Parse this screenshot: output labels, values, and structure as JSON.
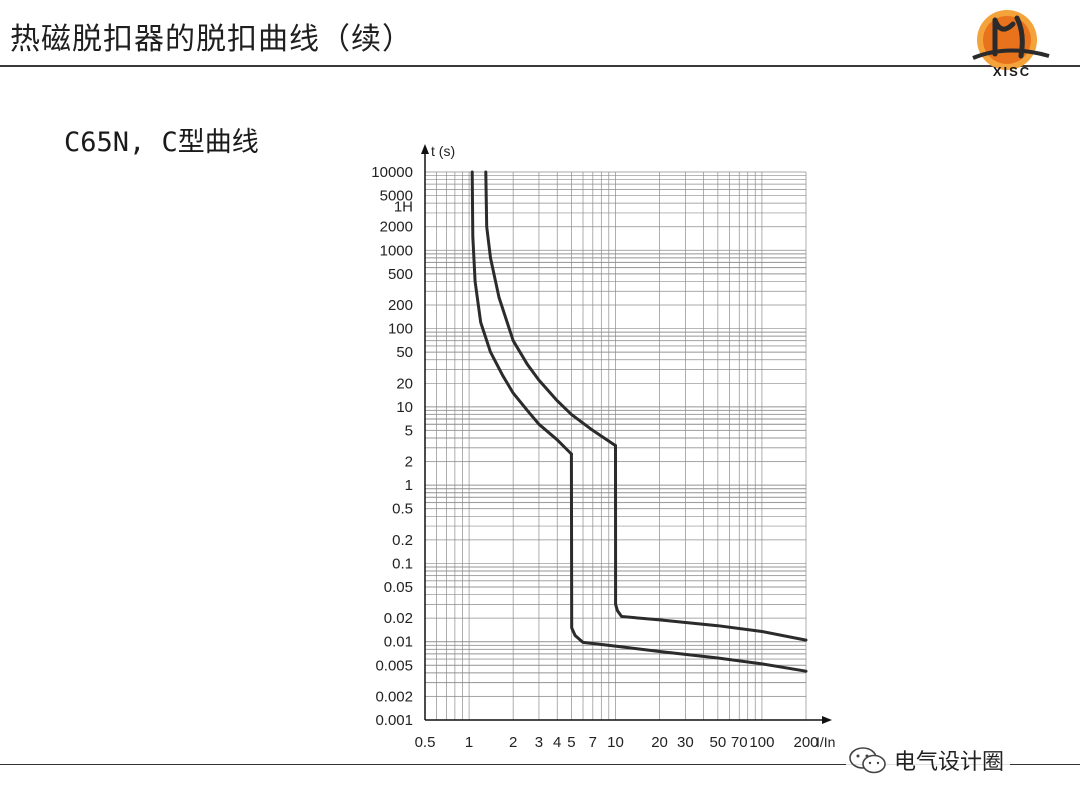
{
  "slide": {
    "title": "热磁脱扣器的脱扣曲线（续）",
    "subtitle": "C65N, C型曲线"
  },
  "logo": {
    "text": "XISC",
    "color_primary": "#e8731c",
    "color_dark": "#2b2b2b"
  },
  "watermark": {
    "text": "电气设计圈",
    "icon": "wechat-icon"
  },
  "colors": {
    "curve": "#2b2b2b",
    "grid": "#8c8c8c",
    "band": "#d6d6d6",
    "axis": "#111111"
  },
  "chart_data": {
    "type": "line",
    "xlabel": "I/In",
    "ylabel": "t (s)",
    "x_scale": "log",
    "y_scale": "log",
    "xlim": [
      0.5,
      200
    ],
    "ylim": [
      0.001,
      10000
    ],
    "grid": true,
    "x_ticks": [
      {
        "v": 0.5,
        "label": "0.5"
      },
      {
        "v": 1,
        "label": "1"
      },
      {
        "v": 2,
        "label": "2"
      },
      {
        "v": 3,
        "label": "3"
      },
      {
        "v": 4,
        "label": "4"
      },
      {
        "v": 5,
        "label": "5"
      },
      {
        "v": 7,
        "label": "7"
      },
      {
        "v": 10,
        "label": "10"
      },
      {
        "v": 20,
        "label": "20"
      },
      {
        "v": 30,
        "label": "30"
      },
      {
        "v": 50,
        "label": "50"
      },
      {
        "v": 70,
        "label": "70"
      },
      {
        "v": 100,
        "label": "100"
      },
      {
        "v": 200,
        "label": "200"
      }
    ],
    "y_ticks": [
      {
        "v": 10000,
        "label": "10000"
      },
      {
        "v": 5000,
        "label": "5000"
      },
      {
        "v": 3600,
        "label": "1H"
      },
      {
        "v": 2000,
        "label": "2000"
      },
      {
        "v": 1000,
        "label": "1000"
      },
      {
        "v": 500,
        "label": "500"
      },
      {
        "v": 200,
        "label": "200"
      },
      {
        "v": 100,
        "label": "100"
      },
      {
        "v": 50,
        "label": "50"
      },
      {
        "v": 20,
        "label": "20"
      },
      {
        "v": 10,
        "label": "10"
      },
      {
        "v": 5,
        "label": "5"
      },
      {
        "v": 2,
        "label": "2"
      },
      {
        "v": 1,
        "label": "1"
      },
      {
        "v": 0.5,
        "label": "0.5"
      },
      {
        "v": 0.2,
        "label": "0.2"
      },
      {
        "v": 0.1,
        "label": "0.1"
      },
      {
        "v": 0.05,
        "label": "0.05"
      },
      {
        "v": 0.02,
        "label": "0.02"
      },
      {
        "v": 0.01,
        "label": "0.01"
      },
      {
        "v": 0.005,
        "label": "0.005"
      },
      {
        "v": 0.002,
        "label": "0.002"
      },
      {
        "v": 0.001,
        "label": "0.001"
      }
    ],
    "series": [
      {
        "x": [
          1.05,
          1.06,
          1.1,
          1.2,
          1.4,
          1.7,
          2.0,
          2.5,
          3.0,
          4.0,
          5.0
        ],
        "y": [
          10000,
          1500,
          400,
          120,
          50,
          25,
          15,
          9,
          6,
          3.8,
          2.5
        ]
      },
      {
        "x": [
          5.0,
          5.02,
          5.3,
          6.0,
          10,
          20,
          50,
          100,
          200
        ],
        "y": [
          2.5,
          0.015,
          0.012,
          0.0098,
          0.0088,
          0.0075,
          0.0062,
          0.0052,
          0.0042
        ]
      },
      {
        "x": [
          1.3,
          1.32,
          1.4,
          1.6,
          2.0,
          2.5,
          3.0,
          4.0,
          5.0,
          7.0,
          10.0
        ],
        "y": [
          10000,
          2000,
          800,
          250,
          70,
          35,
          22,
          12,
          8,
          5,
          3.2
        ]
      },
      {
        "x": [
          10.0,
          10.02,
          10.3,
          11.0,
          20,
          50,
          100,
          200
        ],
        "y": [
          3.2,
          0.03,
          0.025,
          0.021,
          0.019,
          0.016,
          0.0135,
          0.0105
        ]
      }
    ]
  }
}
